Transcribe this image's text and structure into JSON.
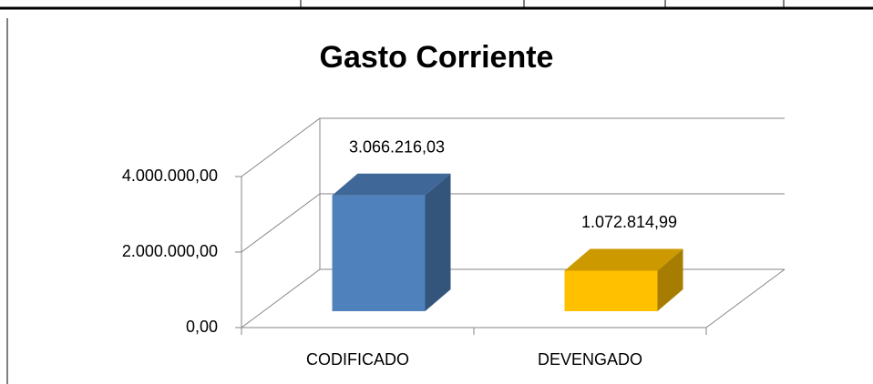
{
  "chart_data": {
    "type": "bar",
    "title": "Gasto Corriente",
    "categories": [
      "CODIFICADO",
      "DEVENGADO"
    ],
    "values": [
      3066216.03,
      1072814.99
    ],
    "value_labels": [
      "3.066.216,03",
      "1.072.814,99"
    ],
    "colors": [
      "#4f81bd",
      "#ffc000"
    ],
    "ylim": [
      0,
      4000000
    ],
    "yticks": [
      {
        "value": 0,
        "label": "0,00"
      },
      {
        "value": 2000000,
        "label": "2.000.000,00"
      },
      {
        "value": 4000000,
        "label": "4.000.000,00"
      }
    ],
    "grid": true
  }
}
